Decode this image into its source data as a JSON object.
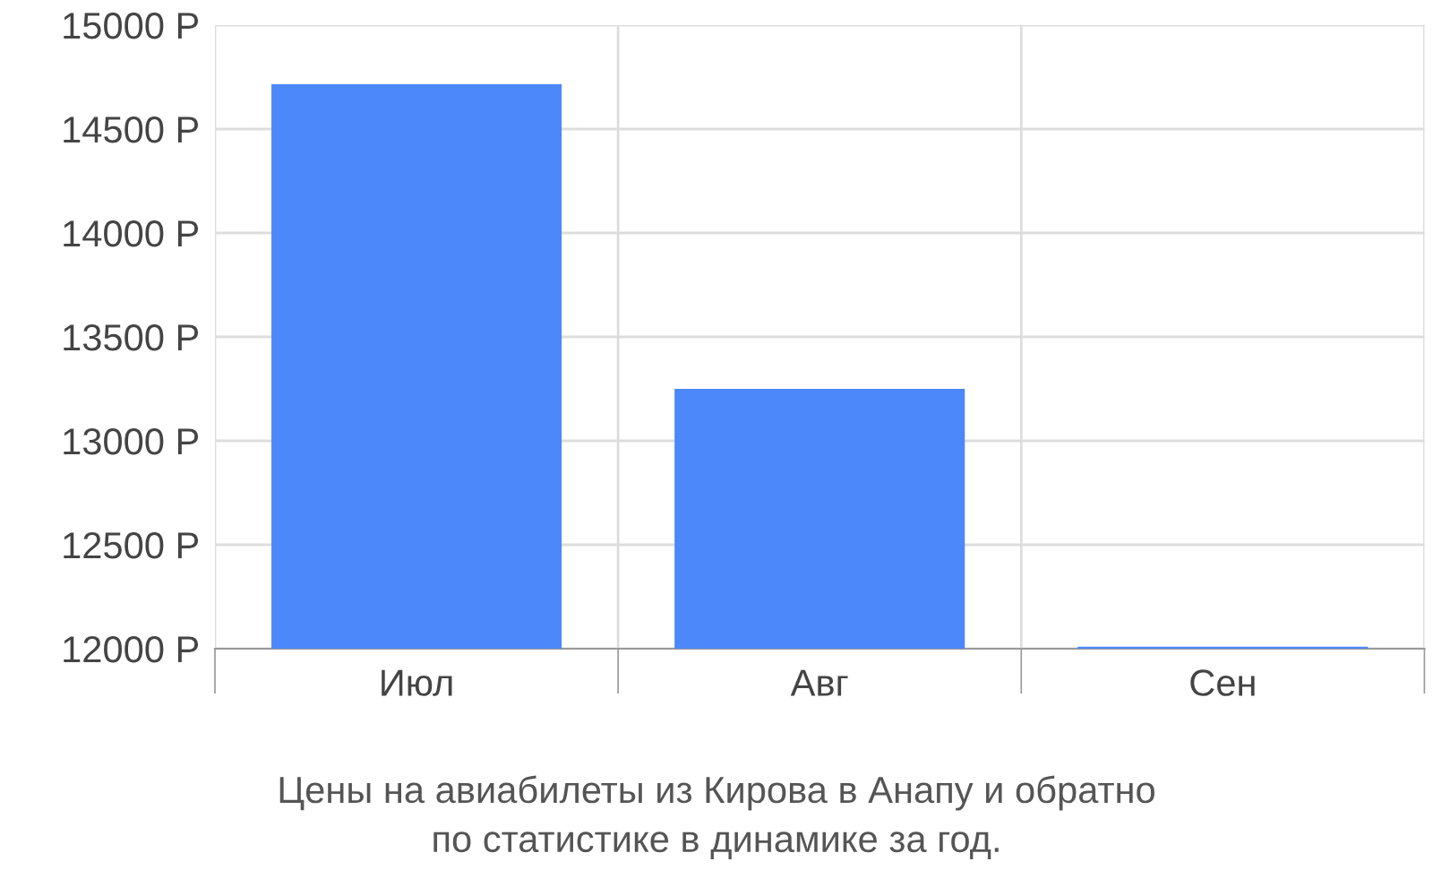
{
  "chart_data": {
    "type": "bar",
    "categories": [
      "Июл",
      "Авг",
      "Сен"
    ],
    "values": [
      14715,
      13250,
      12010
    ],
    "color": "#4d88fa",
    "ylim": [
      12000,
      15000
    ],
    "yticks": [
      {
        "value": 12000,
        "label": "12000 Р"
      },
      {
        "value": 12500,
        "label": "12500 Р"
      },
      {
        "value": 13000,
        "label": "13000 Р"
      },
      {
        "value": 13500,
        "label": "13500 Р"
      },
      {
        "value": 14000,
        "label": "14000 Р"
      },
      {
        "value": 14500,
        "label": "14500 Р"
      },
      {
        "value": 15000,
        "label": "15000 Р"
      }
    ],
    "grid": true,
    "annotations": [
      "Цены на авиабилеты из Кирова в Анапу и обратно",
      "по статистике в динамике за год."
    ]
  }
}
